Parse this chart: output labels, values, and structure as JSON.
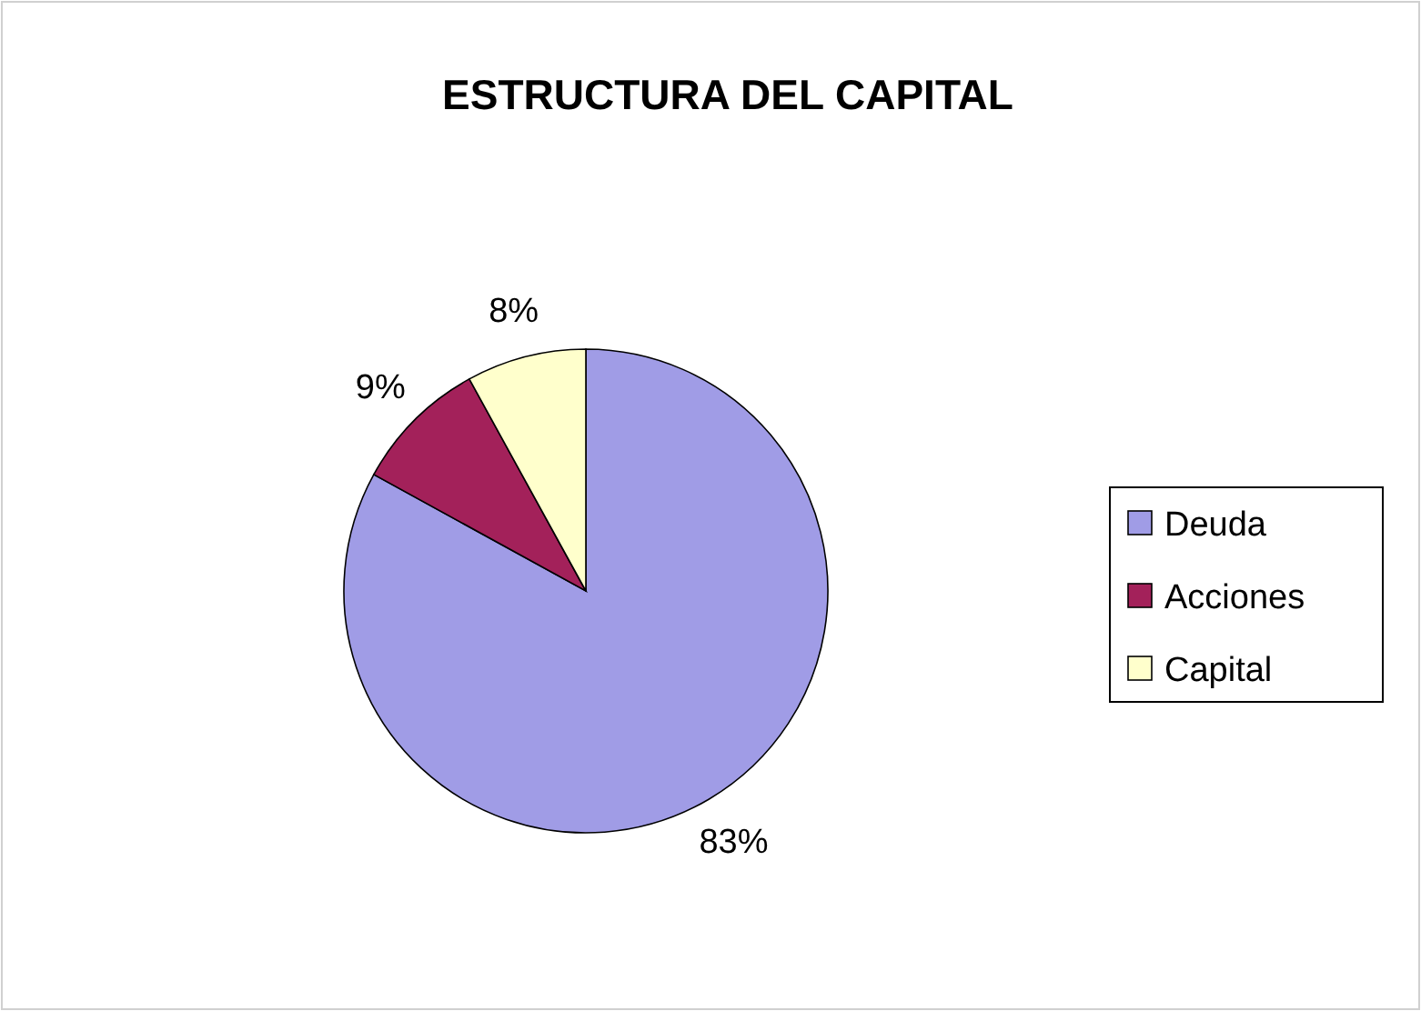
{
  "chart_data": {
    "type": "pie",
    "title": "ESTRUCTURA DEL CAPITAL",
    "categories": [
      "Deuda",
      "Acciones",
      "Capital"
    ],
    "values": [
      83,
      9,
      8
    ],
    "colors": [
      "#a09ce6",
      "#a3215a",
      "#ffffcc"
    ],
    "value_labels": [
      "83%",
      "9%",
      "8%"
    ],
    "legend": "right"
  }
}
